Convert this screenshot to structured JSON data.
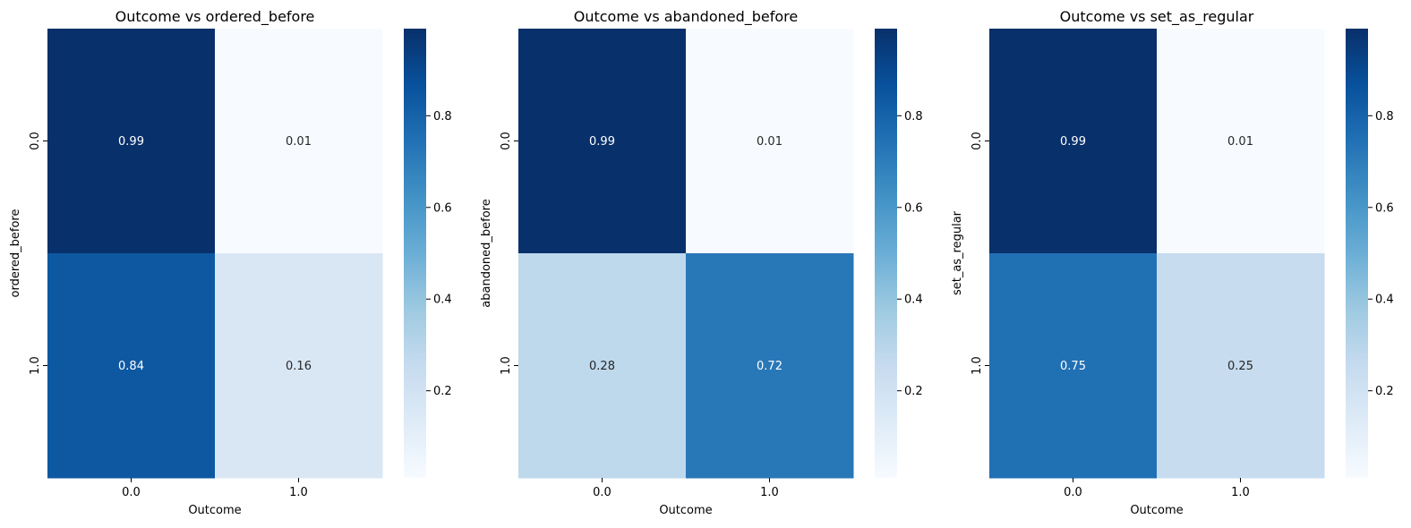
{
  "chart_data": [
    {
      "type": "heatmap",
      "title": "Outcome vs ordered_before",
      "xlabel": "Outcome",
      "ylabel": "ordered_before",
      "x_categories": [
        "0.0",
        "1.0"
      ],
      "y_categories": [
        "0.0",
        "1.0"
      ],
      "values": [
        [
          0.99,
          0.01
        ],
        [
          0.84,
          0.16
        ]
      ],
      "annotations": [
        [
          "0.99",
          "0.01"
        ],
        [
          "0.84",
          "0.16"
        ]
      ],
      "colormap": "Blues",
      "vrange": [
        0.01,
        0.99
      ],
      "colorbar_ticks": [
        "0.2",
        "0.4",
        "0.6",
        "0.8"
      ]
    },
    {
      "type": "heatmap",
      "title": "Outcome vs abandoned_before",
      "xlabel": "Outcome",
      "ylabel": "abandoned_before",
      "x_categories": [
        "0.0",
        "1.0"
      ],
      "y_categories": [
        "0.0",
        "1.0"
      ],
      "values": [
        [
          0.99,
          0.01
        ],
        [
          0.28,
          0.72
        ]
      ],
      "annotations": [
        [
          "0.99",
          "0.01"
        ],
        [
          "0.28",
          "0.72"
        ]
      ],
      "colormap": "Blues",
      "vrange": [
        0.01,
        0.99
      ],
      "colorbar_ticks": [
        "0.2",
        "0.4",
        "0.6",
        "0.8"
      ]
    },
    {
      "type": "heatmap",
      "title": "Outcome vs set_as_regular",
      "xlabel": "Outcome",
      "ylabel": "set_as_regular",
      "x_categories": [
        "0.0",
        "1.0"
      ],
      "y_categories": [
        "0.0",
        "1.0"
      ],
      "values": [
        [
          0.99,
          0.01
        ],
        [
          0.75,
          0.25
        ]
      ],
      "annotations": [
        [
          "0.99",
          "0.01"
        ],
        [
          "0.75",
          "0.25"
        ]
      ],
      "colormap": "Blues",
      "vrange": [
        0.01,
        0.99
      ],
      "colorbar_ticks": [
        "0.2",
        "0.4",
        "0.6",
        "0.8"
      ]
    }
  ]
}
